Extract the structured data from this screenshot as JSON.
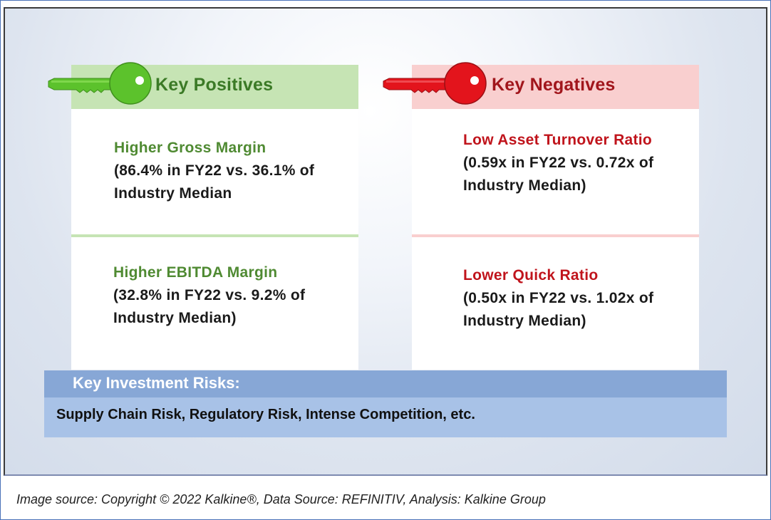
{
  "positives": {
    "title": "Key Positives",
    "items": [
      {
        "title": "Higher Gross Margin",
        "line1": "(86.4% in FY22 vs. 36.1% of",
        "line2": "Industry Median"
      },
      {
        "title": "Higher EBITDA Margin",
        "line1": "(32.8% in FY22 vs. 9.2% of",
        "line2": "Industry Median)"
      }
    ]
  },
  "negatives": {
    "title": "Key Negatives",
    "items": [
      {
        "title": "Low Asset Turnover Ratio",
        "line1": "(0.59x in FY22 vs. 0.72x of",
        "line2": "Industry Median)"
      },
      {
        "title": "Lower Quick Ratio",
        "line1": "(0.50x in FY22 vs. 1.02x of",
        "line2": "Industry Median)"
      }
    ]
  },
  "risks": {
    "title": "Key Investment Risks:",
    "text": "Supply Chain Risk, Regulatory Risk, Intense Competition, etc."
  },
  "caption": "Image source: Copyright © 2022 Kalkine®, Data Source: REFINITIV, Analysis: Kalkine Group",
  "icons": {
    "positive": "green-key-icon",
    "negative": "red-key-icon"
  },
  "colors": {
    "positive_accent": "#4f8a32",
    "negative_accent": "#c0141c",
    "risk_header": "#87a7d6",
    "risk_body": "#a8c2e7"
  }
}
